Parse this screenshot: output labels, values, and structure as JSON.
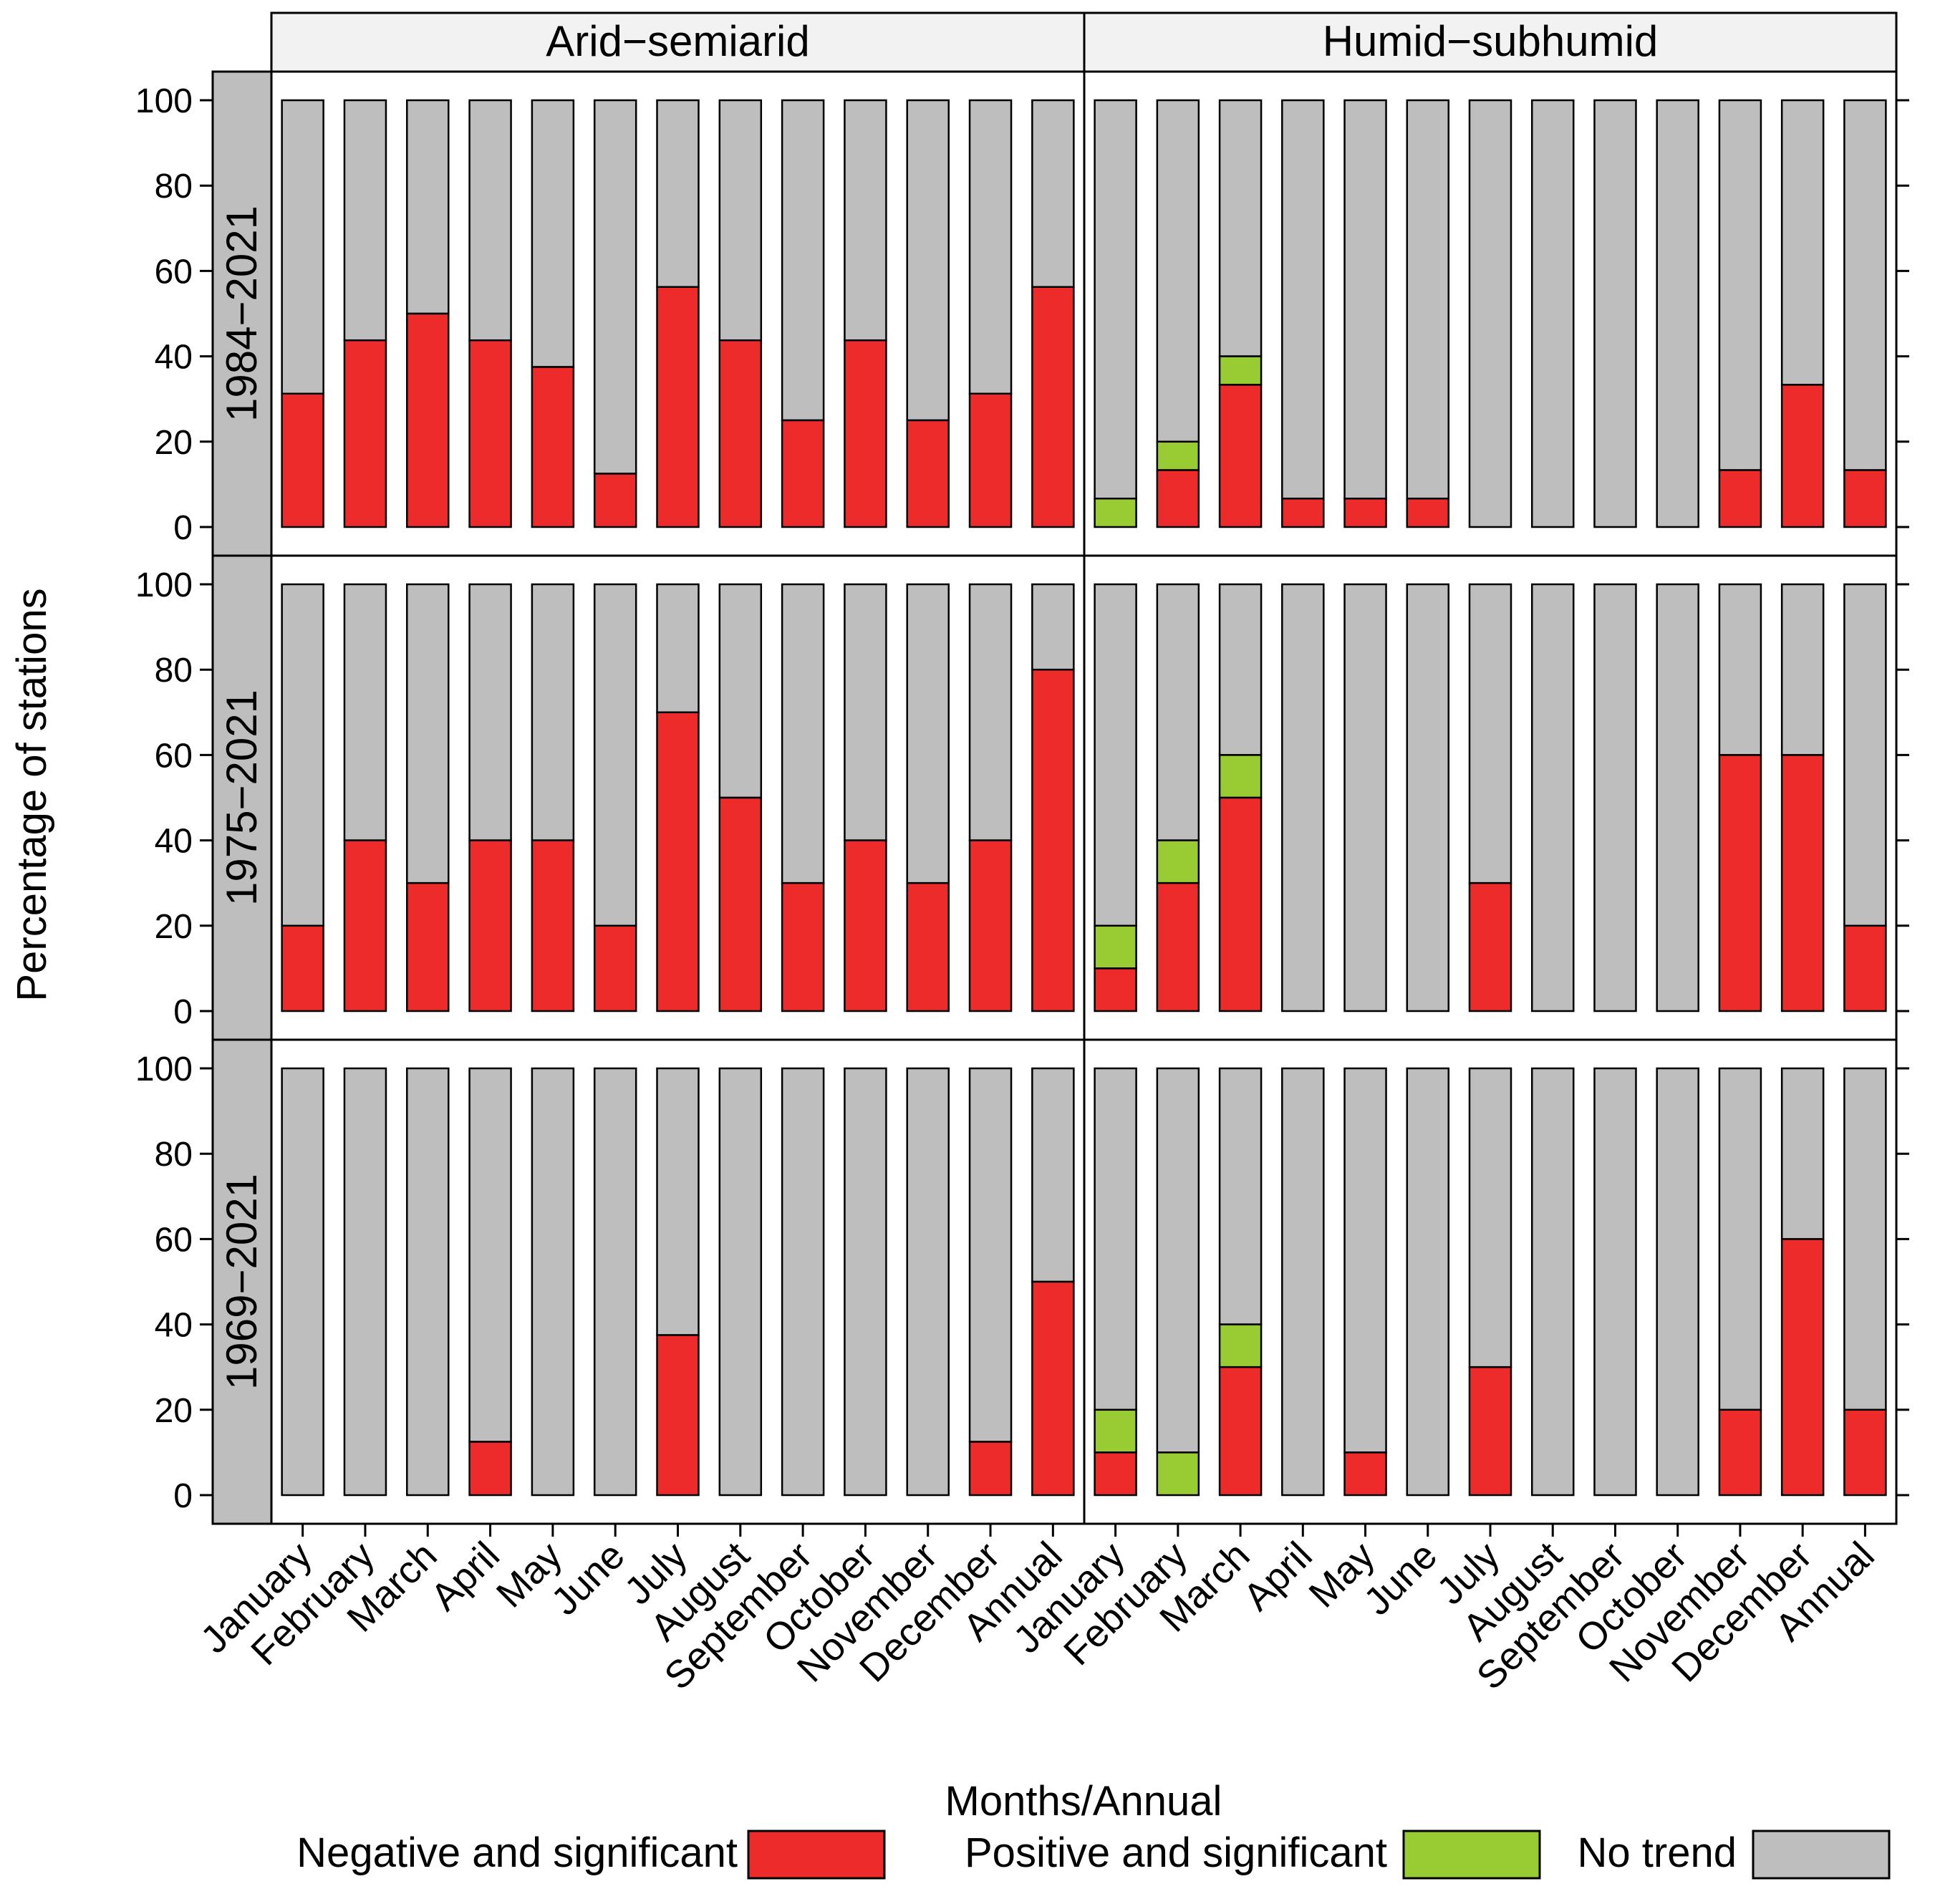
{
  "chart_data": {
    "type": "bar",
    "stacked": true,
    "ylabel": "Percentage of stations",
    "xlabel": "Months/Annual",
    "ylim": [
      0,
      100
    ],
    "yticks": [
      "0",
      "20",
      "40",
      "60",
      "80",
      "100"
    ],
    "categories": [
      "January",
      "February",
      "March",
      "April",
      "May",
      "June",
      "July",
      "August",
      "September",
      "October",
      "November",
      "December",
      "Annual"
    ],
    "column_strips": [
      "Arid−semiarid",
      "Humid−subhumid"
    ],
    "row_strips": [
      "1984−2021",
      "1975−2021",
      "1969−2021"
    ],
    "legend": {
      "placement": "bottom",
      "entries": [
        {
          "label": "Negative and significant",
          "color": "#EE2B2B"
        },
        {
          "label": "Positive and significant",
          "color": "#99CC33"
        },
        {
          "label": "No trend",
          "color": "#BEBEBE"
        }
      ]
    },
    "panels": [
      {
        "period": "1984−2021",
        "region": "Arid−semiarid",
        "negative": [
          31.25,
          43.75,
          50,
          43.75,
          37.5,
          12.5,
          56.25,
          43.75,
          25,
          43.75,
          25,
          31.25,
          56.25
        ],
        "positive": [
          0,
          0,
          0,
          0,
          0,
          0,
          0,
          0,
          0,
          0,
          0,
          0,
          0
        ]
      },
      {
        "period": "1984−2021",
        "region": "Humid−subhumid",
        "negative": [
          0,
          13.33,
          33.33,
          6.67,
          6.67,
          6.67,
          0,
          0,
          0,
          0,
          13.33,
          33.33,
          13.33
        ],
        "positive": [
          6.67,
          6.67,
          6.67,
          0,
          0,
          0,
          0,
          0,
          0,
          0,
          0,
          0,
          0
        ]
      },
      {
        "period": "1975−2021",
        "region": "Arid−semiarid",
        "negative": [
          20,
          40,
          30,
          40,
          40,
          20,
          70,
          50,
          30,
          40,
          30,
          40,
          80
        ],
        "positive": [
          0,
          0,
          0,
          0,
          0,
          0,
          0,
          0,
          0,
          0,
          0,
          0,
          0
        ]
      },
      {
        "period": "1975−2021",
        "region": "Humid−subhumid",
        "negative": [
          10,
          30,
          50,
          0,
          0,
          0,
          30,
          0,
          0,
          0,
          60,
          60,
          20
        ],
        "positive": [
          10,
          10,
          10,
          0,
          0,
          0,
          0,
          0,
          0,
          0,
          0,
          0,
          0
        ]
      },
      {
        "period": "1969−2021",
        "region": "Arid−semiarid",
        "negative": [
          0,
          0,
          0,
          12.5,
          0,
          0,
          37.5,
          0,
          0,
          0,
          0,
          12.5,
          50
        ],
        "positive": [
          0,
          0,
          0,
          0,
          0,
          0,
          0,
          0,
          0,
          0,
          0,
          0,
          0
        ]
      },
      {
        "period": "1969−2021",
        "region": "Humid−subhumid",
        "negative": [
          10,
          0,
          30,
          0,
          10,
          0,
          30,
          0,
          0,
          0,
          20,
          60,
          20
        ],
        "positive": [
          10,
          10,
          10,
          0,
          0,
          0,
          0,
          0,
          0,
          0,
          0,
          0,
          0
        ]
      }
    ]
  }
}
